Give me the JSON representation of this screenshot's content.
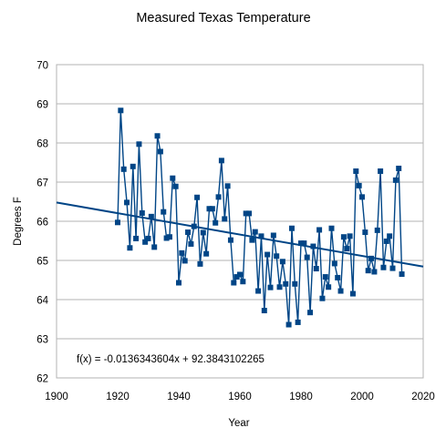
{
  "chart_data": {
    "type": "line",
    "title": "Measured Texas Temperature",
    "xlabel": "Year",
    "ylabel": "Degrees F",
    "xlim": [
      1900,
      2020
    ],
    "ylim": [
      62,
      70
    ],
    "xticks": [
      1900,
      1920,
      1940,
      1960,
      1980,
      2000,
      2020
    ],
    "yticks": [
      62,
      63,
      64,
      65,
      66,
      67,
      68,
      69,
      70
    ],
    "grid": true,
    "legend": "none",
    "colors": {
      "series": "#004586",
      "grid": "#b3b3b3",
      "axis": "#b3b3b3"
    },
    "series": [
      {
        "marker": "square",
        "x": [
          1920,
          1921,
          1922,
          1923,
          1924,
          1925,
          1926,
          1927,
          1928,
          1929,
          1930,
          1931,
          1932,
          1933,
          1934,
          1935,
          1936,
          1937,
          1938,
          1939,
          1940,
          1941,
          1942,
          1943,
          1944,
          1945,
          1946,
          1947,
          1948,
          1949,
          1950,
          1951,
          1952,
          1953,
          1954,
          1955,
          1956,
          1957,
          1958,
          1959,
          1960,
          1961,
          1962,
          1963,
          1964,
          1965,
          1966,
          1967,
          1968,
          1969,
          1970,
          1971,
          1972,
          1973,
          1974,
          1975,
          1976,
          1977,
          1978,
          1979,
          1980,
          1981,
          1982,
          1983,
          1984,
          1985,
          1986,
          1987,
          1988,
          1989,
          1990,
          1991,
          1992,
          1993,
          1994,
          1995,
          1996,
          1997,
          1998,
          1999,
          2000,
          2001,
          2002,
          2003,
          2004,
          2005,
          2006,
          2007,
          2008,
          2009,
          2010,
          2011,
          2012,
          2013
        ],
        "y": [
          65.97,
          68.83,
          67.33,
          66.48,
          65.32,
          67.4,
          65.56,
          67.97,
          66.21,
          65.47,
          65.56,
          66.12,
          65.34,
          68.18,
          67.78,
          66.24,
          65.57,
          65.6,
          67.1,
          66.89,
          64.43,
          65.19,
          64.99,
          65.72,
          65.42,
          65.87,
          66.61,
          64.91,
          65.71,
          65.17,
          66.32,
          66.32,
          65.96,
          66.62,
          67.55,
          66.06,
          66.9,
          65.52,
          64.43,
          64.58,
          64.64,
          64.46,
          66.2,
          66.2,
          65.52,
          65.73,
          64.22,
          65.62,
          63.72,
          65.15,
          64.31,
          65.64,
          65.11,
          64.32,
          64.97,
          64.4,
          63.36,
          65.82,
          64.4,
          63.42,
          65.44,
          65.44,
          65.08,
          63.67,
          65.36,
          64.79,
          65.78,
          64.03,
          64.58,
          64.32,
          65.82,
          64.92,
          64.56,
          64.22,
          65.6,
          65.3,
          65.62,
          64.15,
          67.28,
          66.91,
          66.62,
          65.72,
          64.74,
          65.05,
          64.71,
          65.77,
          67.28,
          64.82,
          65.49,
          65.62,
          64.8,
          67.05,
          67.35,
          64.65
        ]
      }
    ],
    "trendline": {
      "slope": -0.0136343604,
      "intercept": 92.3843102265,
      "equation_label": "f(x) = -0.0136343604x + 92.3843102265"
    }
  }
}
